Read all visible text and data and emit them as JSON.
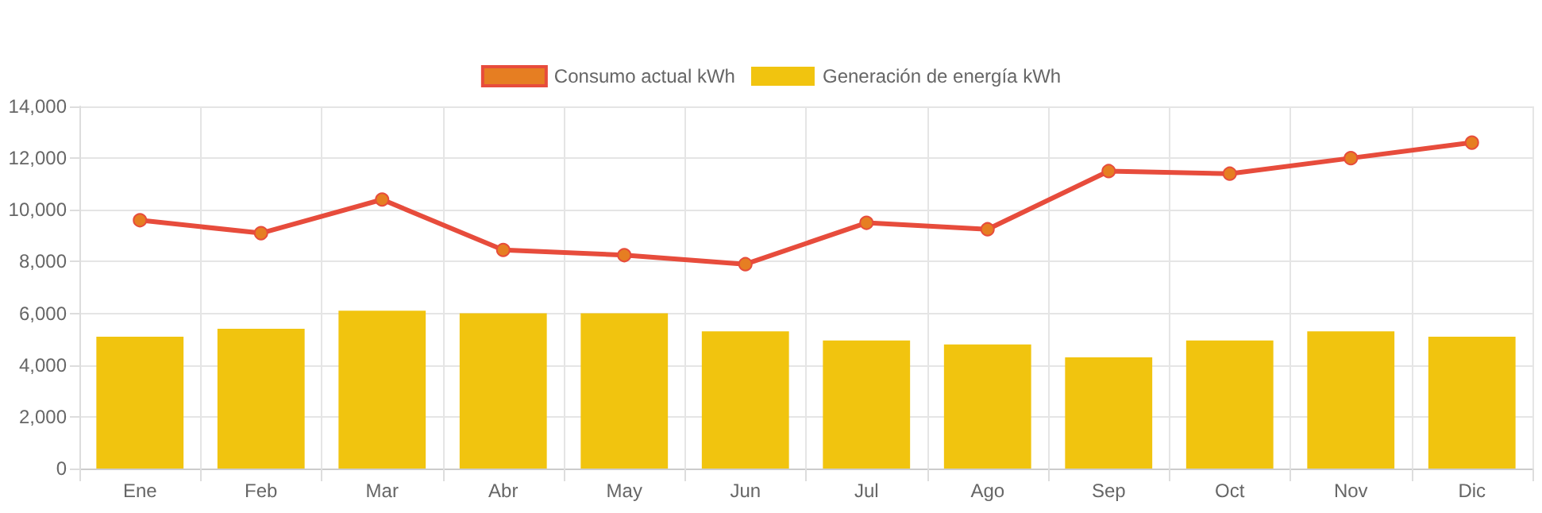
{
  "chart_data": {
    "type": "bar",
    "categories": [
      "Ene",
      "Feb",
      "Mar",
      "Abr",
      "May",
      "Jun",
      "Jul",
      "Ago",
      "Sep",
      "Oct",
      "Nov",
      "Dic"
    ],
    "series": [
      {
        "name": "Consumo actual kWh",
        "type": "line",
        "color": "#e74c3c",
        "values": [
          9600,
          9100,
          10400,
          8450,
          8250,
          7900,
          9500,
          9250,
          11500,
          11400,
          12000,
          12600
        ]
      },
      {
        "name": "Generación de energía kWh",
        "color": "#f1c40f",
        "values": [
          5100,
          5400,
          6100,
          6000,
          6000,
          5300,
          4950,
          4800,
          4300,
          4950,
          5300,
          5100
        ]
      }
    ],
    "ylim": [
      0,
      14000
    ],
    "yticks": [
      0,
      {
        "value": 2000,
        "label": "2,000"
      },
      {
        "value": 4000,
        "label": "4,000"
      },
      {
        "value": 6000,
        "label": "6,000"
      },
      {
        "value": 8000,
        "label": "8,000"
      },
      {
        "value": 10000,
        "label": "10,000"
      },
      {
        "value": 12000,
        "label": "12,000"
      },
      {
        "value": 14000,
        "label": "14,000"
      }
    ],
    "grid": true,
    "legend": "top",
    "marker": "circle",
    "line_style": "solid"
  }
}
